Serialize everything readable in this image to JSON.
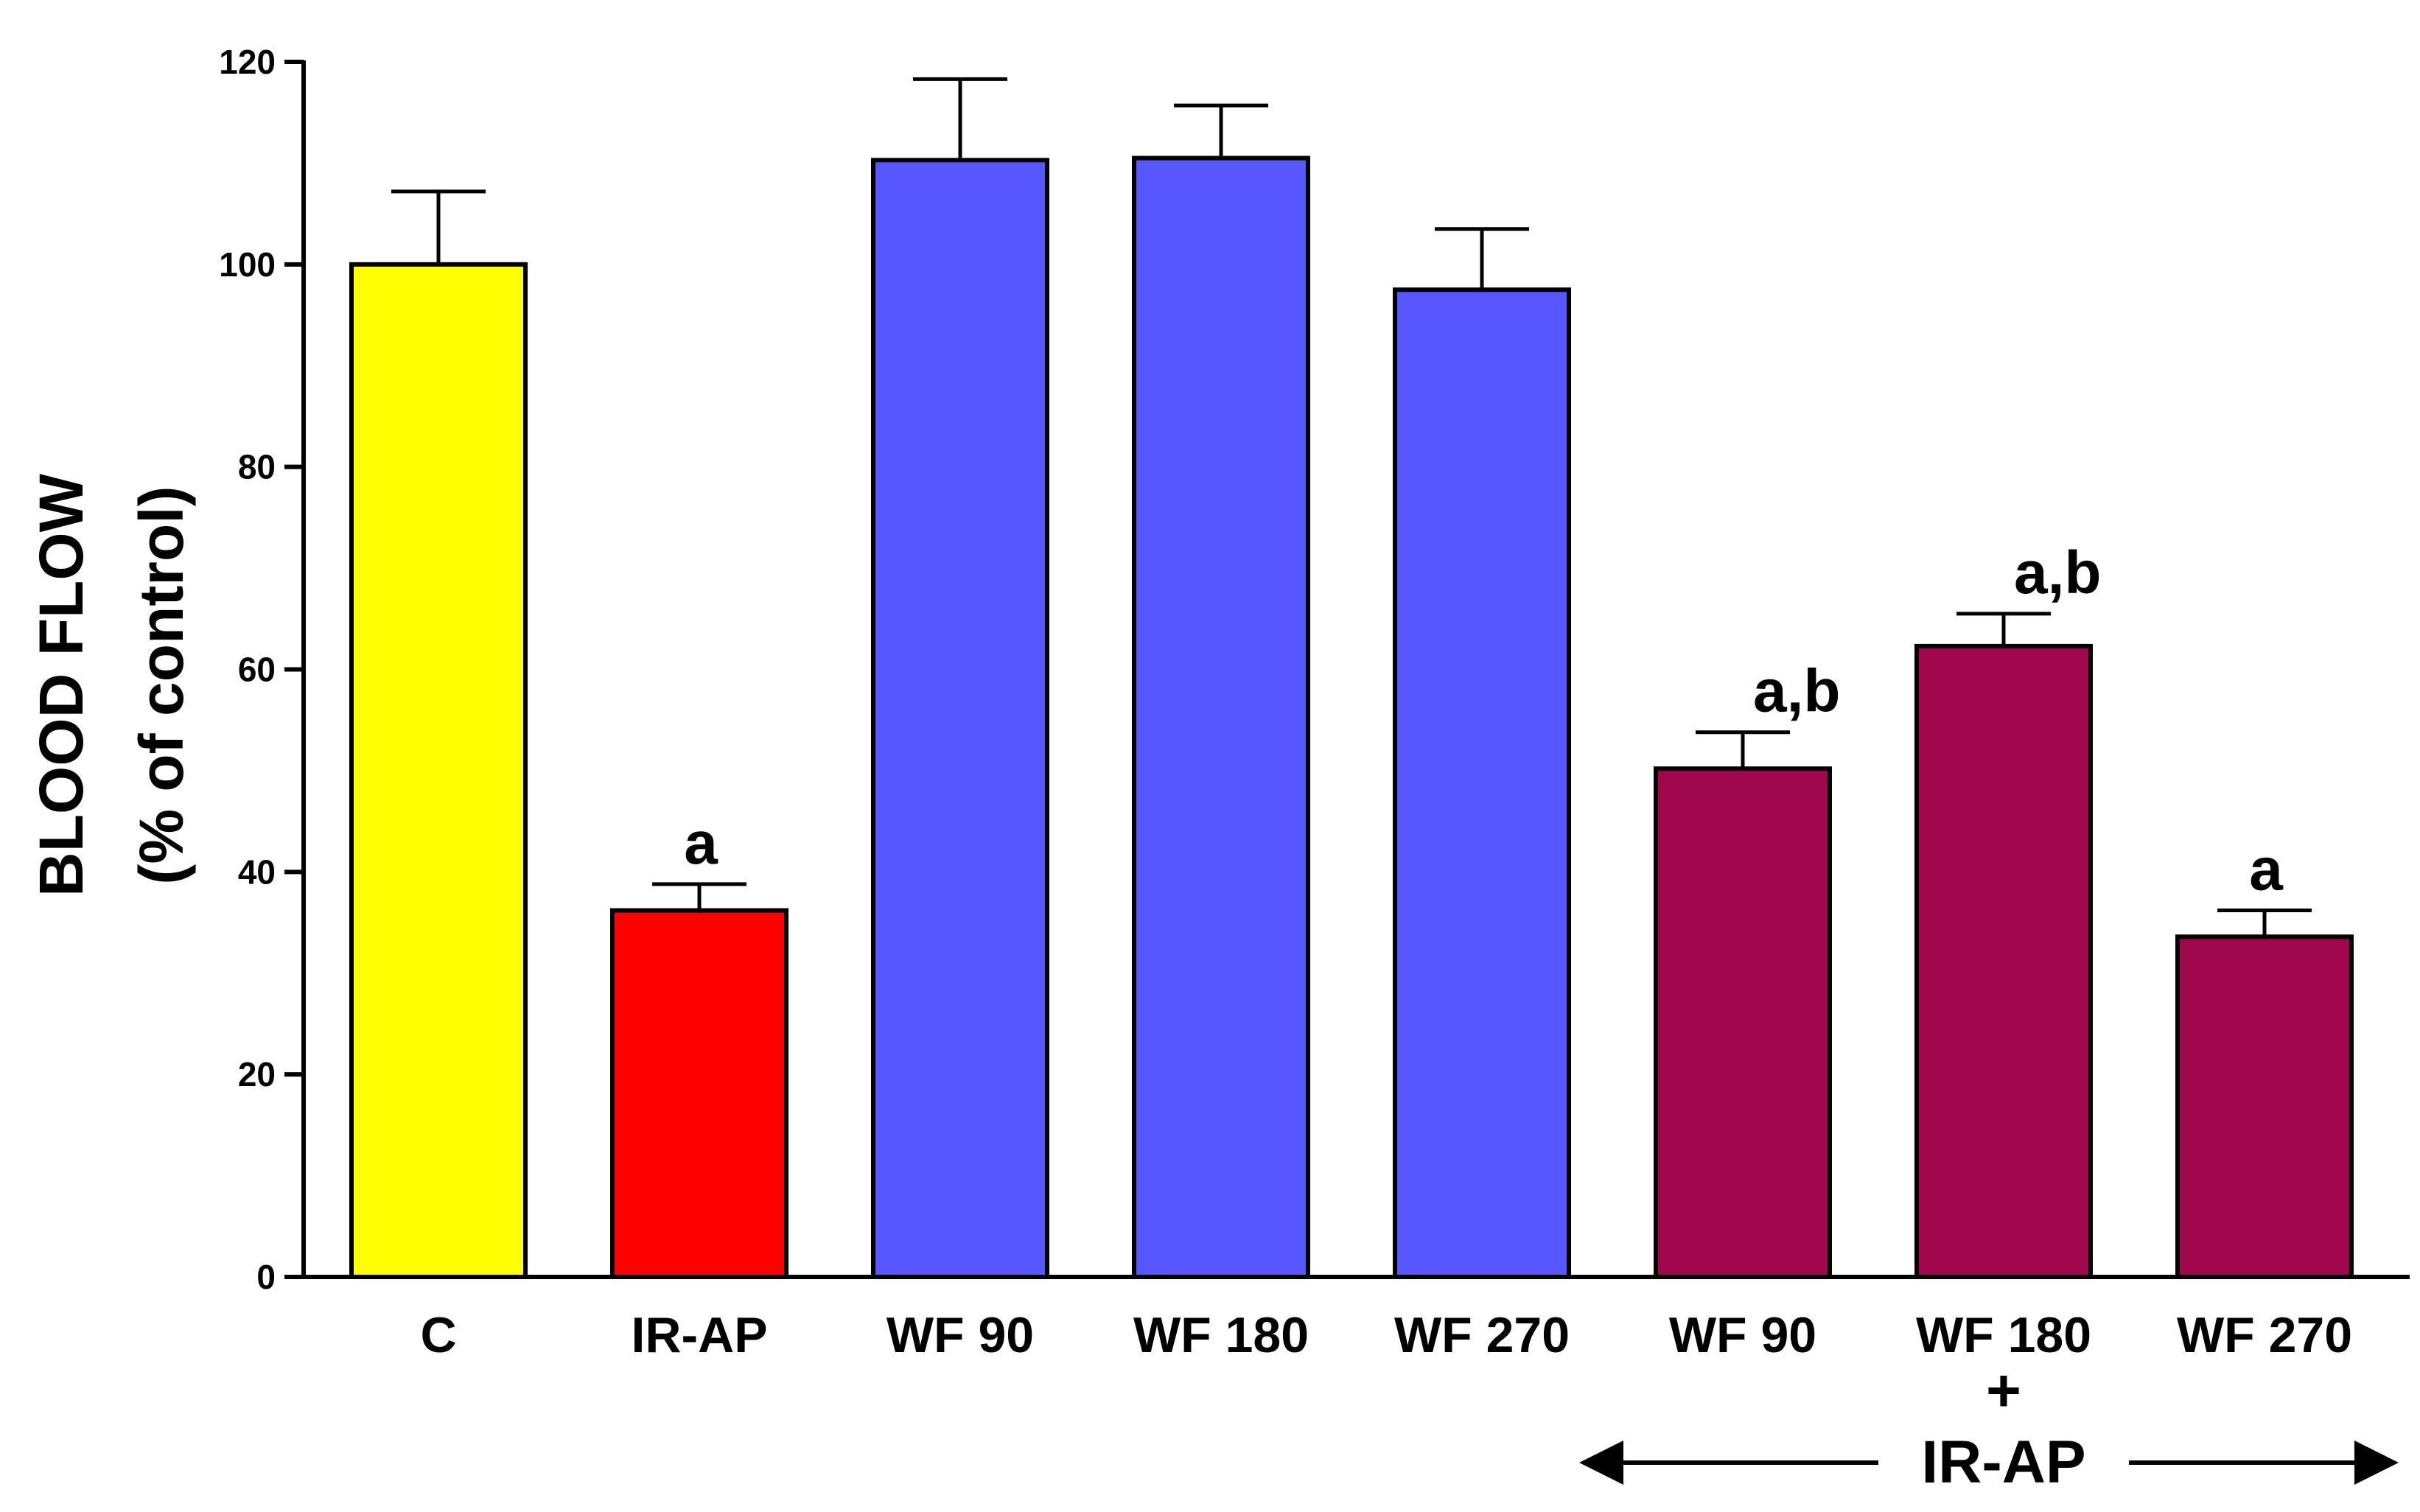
{
  "chart_data": {
    "type": "bar",
    "title": "",
    "xlabel": "",
    "ylabel": "BLOOD FLOW",
    "ylabel_sub": "(% of control)",
    "ylim": [
      0,
      120
    ],
    "yticks": [
      0,
      20,
      40,
      60,
      80,
      100,
      120
    ],
    "categories": [
      "C",
      "IR-AP",
      "WF 90",
      "WF 180",
      "WF 270",
      "WF 90",
      "WF 180",
      "WF 270"
    ],
    "values": [
      100,
      36.2,
      110.3,
      110.5,
      97.5,
      50.2,
      62.3,
      33.6
    ],
    "errors": [
      7.2,
      2.6,
      8.0,
      5.2,
      6.0,
      3.6,
      3.2,
      2.6
    ],
    "annotations": [
      "",
      "a",
      "",
      "",
      "",
      "a,b",
      "a,b",
      "a"
    ],
    "colors": [
      "#ffff00",
      "#ff0000",
      "#5757ff",
      "#5757ff",
      "#5757ff",
      "#a0064b",
      "#a0064b",
      "#a0064b"
    ],
    "group": {
      "plus": "+",
      "label": "IR-AP",
      "from_index": 5,
      "to_index": 7
    },
    "grid": false,
    "legend": "none"
  }
}
